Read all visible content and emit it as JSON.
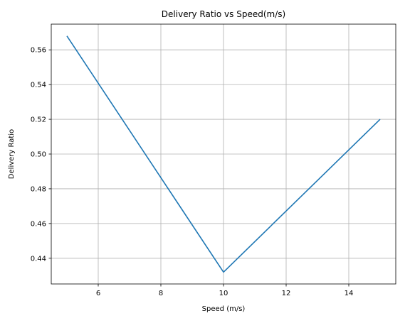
{
  "chart_data": {
    "type": "line",
    "title": "Delivery Ratio  vs Speed(m/s)",
    "xlabel": "Speed (m/s)",
    "ylabel": "Delivery Ratio",
    "x": [
      5,
      10,
      15
    ],
    "series": [
      {
        "values": [
          0.568,
          0.432,
          0.52
        ],
        "color": "#1f77b4"
      }
    ],
    "xlim": [
      4.5,
      15.5
    ],
    "ylim": [
      0.4252,
      0.5748
    ],
    "xticks": [
      6,
      8,
      10,
      12,
      14
    ],
    "xtick_labels": [
      "6",
      "8",
      "10",
      "12",
      "14"
    ],
    "yticks": [
      0.44,
      0.46,
      0.48,
      0.5,
      0.52,
      0.54,
      0.56
    ],
    "ytick_labels": [
      "0.44",
      "0.46",
      "0.48",
      "0.50",
      "0.52",
      "0.54",
      "0.56"
    ],
    "grid": true,
    "legend": "none"
  }
}
